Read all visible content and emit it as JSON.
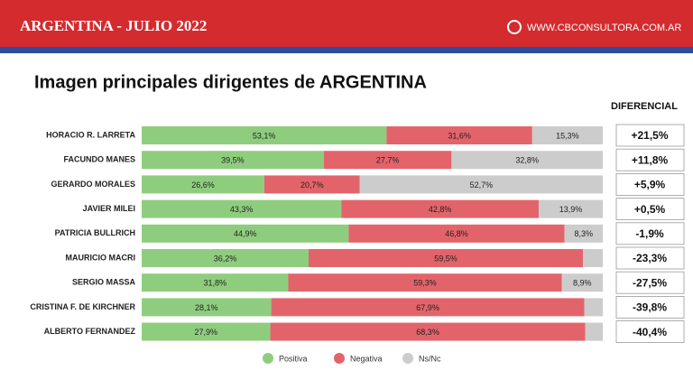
{
  "header": {
    "title": "ARGENTINA - JULIO 2022",
    "site": "WWW.CBCONSULTORA.COM.AR"
  },
  "chart_data": {
    "type": "stacked-bar",
    "title": "Imagen principales dirigentes de ARGENTINA",
    "categories": [
      "HORACIO R. LARRETA",
      "FACUNDO MANES",
      "GERARDO MORALES",
      "JAVIER MILEI",
      "PATRICIA BULLRICH",
      "MAURICIO MACRI",
      "SERGIO MASSA",
      "CRISTINA F. DE KIRCHNER",
      "ALBERTO FERNANDEZ"
    ],
    "xlim": [
      0,
      100
    ],
    "series": [
      {
        "name": "Positiva",
        "color": "#8fcd7e",
        "values": [
          53.1,
          39.5,
          26.6,
          43.3,
          44.9,
          36.2,
          31.8,
          28.1,
          27.9
        ],
        "value_labels": [
          "53,1%",
          "39,5%",
          "26,6%",
          "43,3%",
          "44,9%",
          "36,2%",
          "31,8%",
          "28,1%",
          "27,9%"
        ]
      },
      {
        "name": "Negativa",
        "color": "#e2646a",
        "values": [
          31.6,
          27.7,
          20.7,
          42.8,
          46.8,
          59.5,
          59.3,
          67.9,
          68.3
        ],
        "value_labels": [
          "31,6%",
          "27,7%",
          "20,7%",
          "42,8%",
          "46,8%",
          "59,5%",
          "59,3%",
          "67,9%",
          "68,3%"
        ]
      },
      {
        "name": "Ns/Nc",
        "color": "#cccccc",
        "values": [
          15.3,
          32.8,
          52.7,
          13.9,
          8.3,
          4.3,
          8.9,
          4.0,
          3.8
        ],
        "value_labels": [
          "15,3%",
          "32,8%",
          "52,7%",
          "13,9%",
          "8,3%",
          null,
          "8,9%",
          null,
          null
        ]
      }
    ],
    "differential": {
      "title": "DIFERENCIAL",
      "labels": [
        "+21,5%",
        "+11,8%",
        "+5,9%",
        "+0,5%",
        "-1,9%",
        "-23,3%",
        "-27,5%",
        "-39,8%",
        "-40,4%"
      ]
    }
  }
}
